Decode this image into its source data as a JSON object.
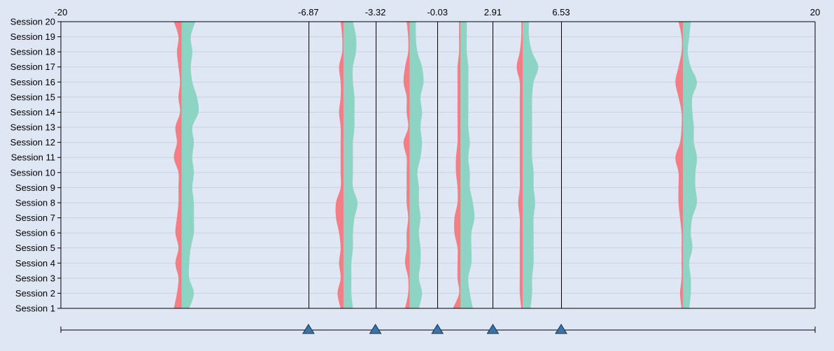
{
  "chart_data": {
    "type": "violin",
    "x_range": [
      -20,
      20
    ],
    "x_tick_labels": [
      "-20",
      "20"
    ],
    "thresholds": [
      -6.87,
      -3.32,
      -0.03,
      2.91,
      6.53
    ],
    "threshold_labels": [
      "-6.87",
      "-3.32",
      "-0.03",
      "2.91",
      "6.53"
    ],
    "sessions": [
      "Session 20",
      "Session 19",
      "Session 18",
      "Session 17",
      "Session 16",
      "Session 15",
      "Session 14",
      "Session 13",
      "Session 12",
      "Session 11",
      "Session 10",
      "Session 9",
      "Session 8",
      "Session 7",
      "Session 6",
      "Session 5",
      "Session 4",
      "Session 3",
      "Session 2",
      "Session 1"
    ],
    "colors": {
      "left": "#f47e86",
      "right": "#8dd4c4",
      "background": "#dfe6f4",
      "marker": "#3b73a6"
    },
    "series_centers": [
      -13.6,
      -5.0,
      -1.5,
      1.2,
      4.5,
      13.0
    ],
    "left_widths": [
      [
        0.5,
        0.2,
        0.3,
        0.2,
        0.1,
        0.2,
        0.1,
        0.4,
        0.3,
        0.5,
        0.2,
        0.2,
        0.2,
        0.3,
        0.4,
        0.2,
        0.4,
        0.2,
        0.3,
        0.5
      ],
      [
        0.2,
        0.1,
        0.1,
        0.3,
        0.2,
        0.2,
        0.3,
        0.2,
        0.2,
        0.2,
        0.2,
        0.2,
        0.5,
        0.5,
        0.3,
        0.2,
        0.3,
        0.2,
        0.4,
        0.2
      ],
      [
        0.2,
        0.1,
        0.1,
        0.3,
        0.4,
        0.2,
        0.2,
        0.1,
        0.4,
        0.2,
        0.2,
        0.2,
        0.2,
        0.1,
        0.2,
        0.2,
        0.3,
        0.1,
        0.1,
        0.3
      ],
      [
        0.1,
        0.1,
        0.1,
        0.2,
        0.2,
        0.2,
        0.2,
        0.2,
        0.2,
        0.3,
        0.3,
        0.2,
        0.2,
        0.4,
        0.4,
        0.2,
        0.2,
        0.2,
        0.1,
        0.5
      ],
      [
        0.1,
        0.1,
        0.2,
        0.4,
        0.2,
        0.2,
        0.2,
        0.2,
        0.2,
        0.2,
        0.2,
        0.2,
        0.3,
        0.2,
        0.2,
        0.2,
        0.2,
        0.2,
        0.2,
        0.1
      ],
      [
        0.3,
        0.1,
        0.1,
        0.3,
        0.5,
        0.3,
        0.1,
        0.1,
        0.2,
        0.5,
        0.3,
        0.3,
        0.3,
        0.2,
        0.1,
        0.1,
        0.1,
        0.1,
        0.2,
        0.1
      ]
    ],
    "right_widths": [
      [
        0.9,
        0.6,
        0.7,
        0.6,
        0.7,
        1.0,
        1.1,
        0.7,
        0.8,
        0.7,
        0.8,
        0.7,
        0.8,
        0.8,
        0.8,
        0.6,
        0.5,
        0.5,
        0.8,
        0.5
      ],
      [
        0.6,
        0.8,
        0.8,
        0.6,
        0.6,
        0.7,
        0.7,
        0.7,
        0.6,
        0.6,
        0.6,
        0.6,
        0.9,
        0.7,
        0.6,
        0.6,
        0.5,
        0.5,
        0.5,
        0.6
      ],
      [
        0.4,
        0.4,
        0.5,
        0.8,
        0.9,
        0.7,
        0.8,
        0.7,
        0.8,
        0.7,
        0.5,
        0.6,
        0.6,
        0.7,
        0.6,
        0.7,
        0.7,
        0.6,
        0.8,
        0.6
      ],
      [
        0.4,
        0.4,
        0.4,
        0.5,
        0.5,
        0.5,
        0.5,
        0.5,
        0.6,
        0.5,
        0.6,
        0.6,
        0.8,
        0.9,
        0.7,
        0.7,
        0.7,
        0.5,
        0.6,
        0.8
      ],
      [
        0.4,
        0.4,
        0.6,
        1.0,
        0.7,
        0.6,
        0.6,
        0.6,
        0.6,
        0.6,
        0.7,
        0.7,
        0.8,
        0.7,
        0.7,
        0.7,
        0.7,
        0.6,
        0.6,
        0.5
      ],
      [
        0.5,
        0.4,
        0.3,
        0.5,
        0.9,
        0.6,
        0.6,
        0.7,
        0.7,
        0.9,
        0.8,
        0.8,
        0.9,
        0.6,
        0.5,
        0.6,
        0.4,
        0.5,
        0.5,
        0.4
      ]
    ]
  }
}
